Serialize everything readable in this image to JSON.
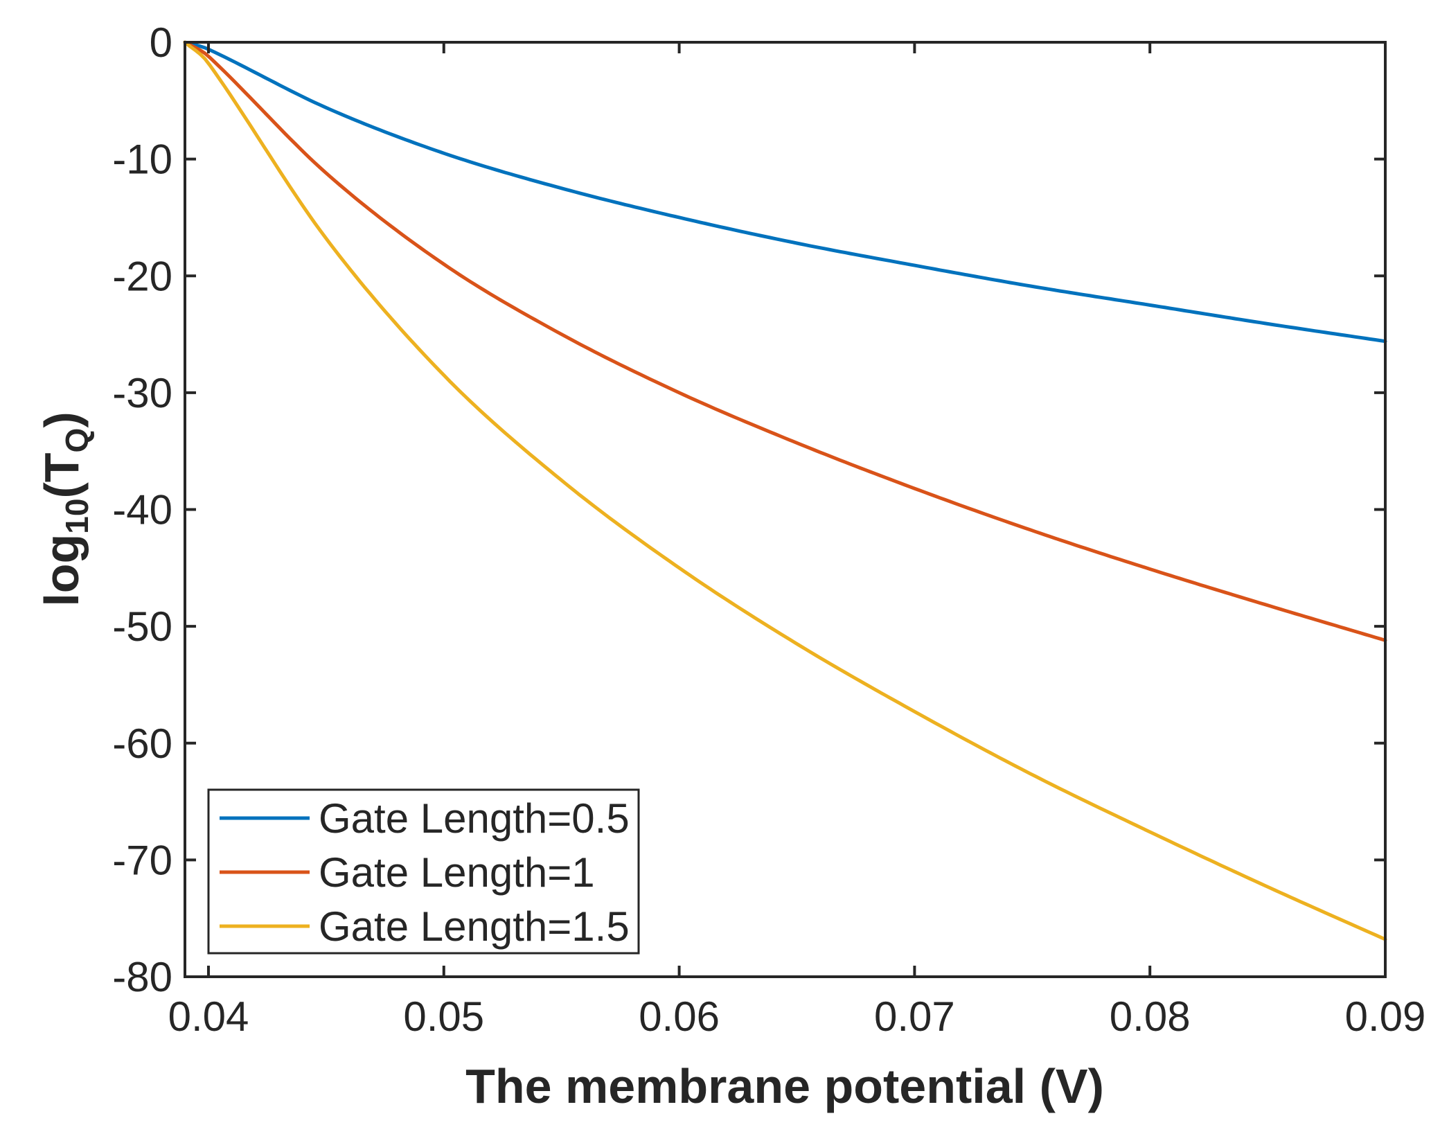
{
  "chart_data": {
    "type": "line",
    "xlabel": "The membrane potential (V)",
    "ylabel_main": "log",
    "ylabel_sub": "10",
    "ylabel_open": "(T",
    "ylabel_sub2": "Q",
    "ylabel_close": ")",
    "xlim": [
      0.039,
      0.09
    ],
    "ylim": [
      -80,
      0
    ],
    "xticks": [
      0.04,
      0.05,
      0.06,
      0.07,
      0.08,
      0.09
    ],
    "xtick_labels": [
      "0.04",
      "0.05",
      "0.06",
      "0.07",
      "0.08",
      "0.09"
    ],
    "yticks": [
      0,
      -10,
      -20,
      -30,
      -40,
      -50,
      -60,
      -70,
      -80
    ],
    "ytick_labels": [
      "0",
      "-10",
      "-20",
      "-30",
      "-40",
      "-50",
      "-60",
      "-70",
      "-80"
    ],
    "grid": false,
    "legend_position": "bottom-left",
    "x": [
      0.039,
      0.04,
      0.045,
      0.05,
      0.055,
      0.06,
      0.065,
      0.07,
      0.075,
      0.08,
      0.085,
      0.09
    ],
    "series": [
      {
        "name": "Gate Length=0.5",
        "color": "#0072BD",
        "values": [
          0.0,
          -0.6,
          -5.6,
          -9.5,
          -12.5,
          -15.0,
          -17.2,
          -19.1,
          -20.9,
          -22.5,
          -24.1,
          -25.6
        ]
      },
      {
        "name": "Gate Length=1",
        "color": "#D95319",
        "values": [
          0.0,
          -1.2,
          -11.2,
          -19.0,
          -25.0,
          -30.0,
          -34.3,
          -38.2,
          -41.8,
          -45.1,
          -48.2,
          -51.2
        ]
      },
      {
        "name": "Gate Length=1.5",
        "color": "#EDB120",
        "values": [
          0.0,
          -1.8,
          -16.8,
          -28.5,
          -37.5,
          -45.0,
          -51.5,
          -57.3,
          -62.7,
          -67.6,
          -72.3,
          -76.8
        ]
      }
    ]
  }
}
